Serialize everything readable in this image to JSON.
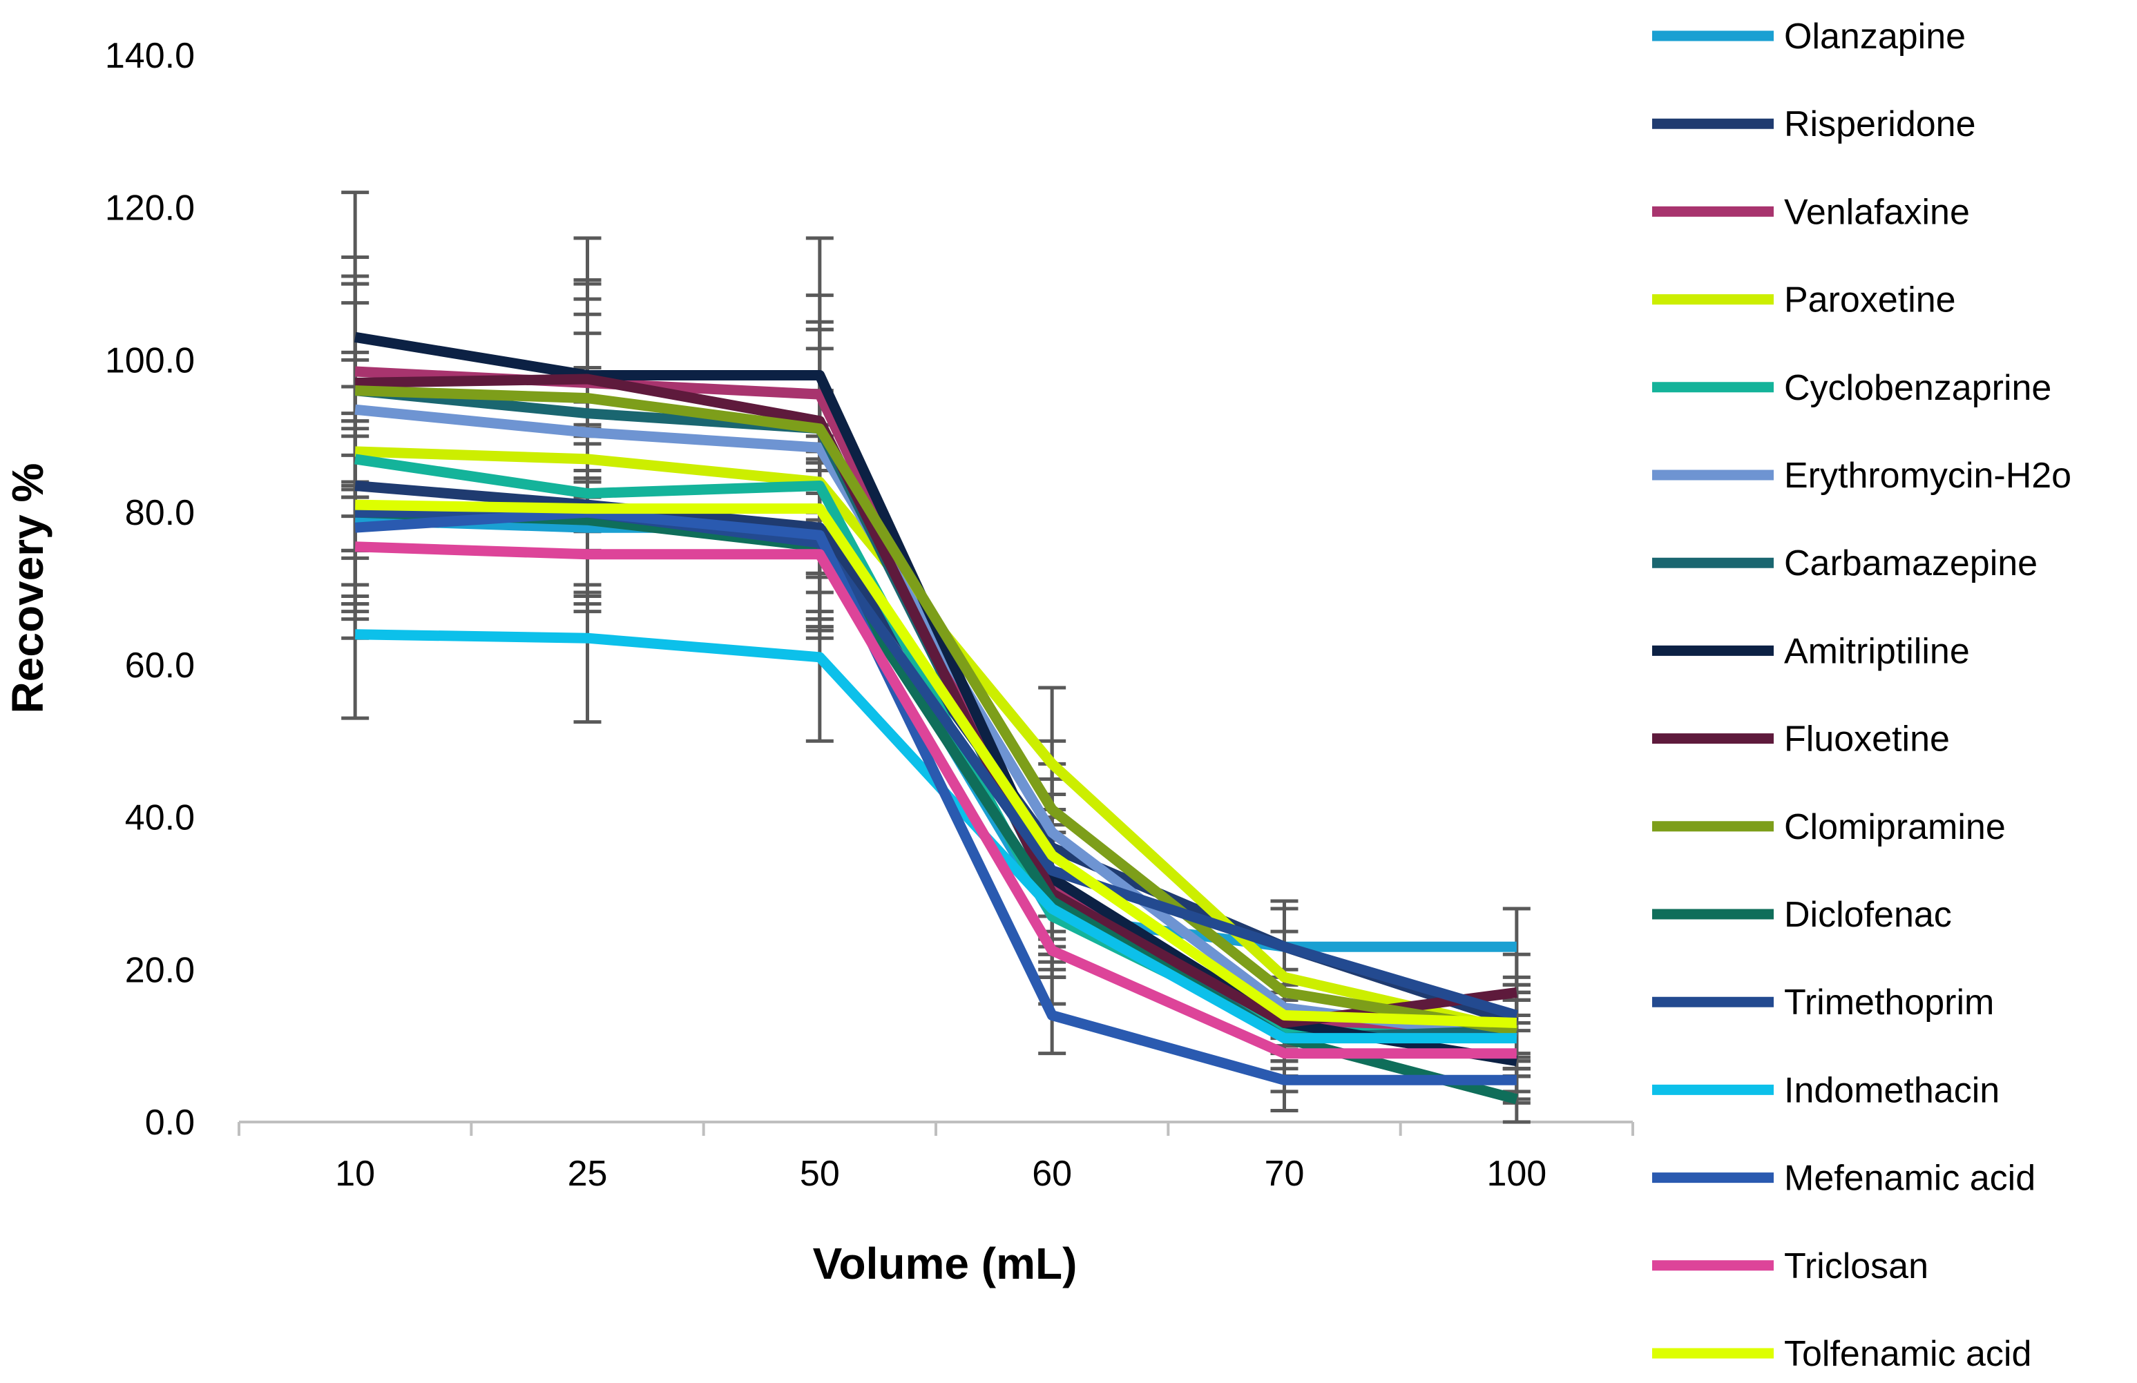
{
  "chart_data": {
    "type": "line",
    "title": "",
    "xlabel": "Volume (mL)",
    "ylabel": "Recovery %",
    "categories": [
      "10",
      "25",
      "50",
      "60",
      "70",
      "100"
    ],
    "ylim": [
      0,
      140
    ],
    "yticks": [
      0,
      20,
      40,
      60,
      80,
      100,
      120,
      140
    ],
    "ytick_labels": [
      "0.0",
      "20.0",
      "40.0",
      "60.0",
      "80.0",
      "100.0",
      "120.0",
      "140.0"
    ],
    "grid": false,
    "error_bar_color": "#595959",
    "legend_position": "right",
    "series": [
      {
        "name": "Olanzapine",
        "color": "#1aa0d2",
        "values": [
          79,
          78,
          78,
          27,
          23,
          23
        ],
        "error": [
          12,
          11,
          11,
          8,
          5,
          5
        ]
      },
      {
        "name": "Risperidone",
        "color": "#1f3b70",
        "values": [
          83.5,
          81,
          78,
          36,
          23,
          13
        ],
        "error": [
          13,
          12,
          12,
          9,
          6,
          5
        ]
      },
      {
        "name": "Venlafaxine",
        "color": "#a8346e",
        "values": [
          98.5,
          97,
          95.5,
          31,
          13,
          12
        ],
        "error": [
          15,
          13,
          13,
          8,
          5,
          5
        ]
      },
      {
        "name": "Paroxetine",
        "color": "#ccee00",
        "values": [
          88,
          87,
          84,
          47,
          19,
          12
        ],
        "error": [
          13,
          12,
          12,
          10,
          6,
          5
        ]
      },
      {
        "name": "Cyclobenzaprine",
        "color": "#14b39a",
        "values": [
          87,
          82.5,
          83.5,
          27,
          12,
          11
        ],
        "error": [
          13,
          12,
          12,
          8,
          5,
          5
        ]
      },
      {
        "name": "Erythromycin-H2o",
        "color": "#6e94d2",
        "values": [
          93.5,
          90.5,
          88.5,
          38,
          15,
          11
        ],
        "error": [
          14,
          13,
          13,
          9,
          5,
          5
        ]
      },
      {
        "name": "Carbamazepine",
        "color": "#1a6670",
        "values": [
          96,
          93,
          91,
          30,
          11,
          12
        ],
        "error": [
          14,
          13,
          13,
          8,
          5,
          5
        ]
      },
      {
        "name": "Amitriptiline",
        "color": "#0c2144",
        "values": [
          103,
          98,
          98,
          32,
          13,
          8
        ],
        "error": [
          19,
          18,
          18,
          8,
          5,
          5
        ]
      },
      {
        "name": "Fluoxetine",
        "color": "#5e1a3c",
        "values": [
          97,
          97.5,
          92,
          30,
          13,
          17
        ],
        "error": [
          14,
          13,
          13,
          8,
          5,
          5
        ]
      },
      {
        "name": "Clomipramine",
        "color": "#7d9e1a",
        "values": [
          96,
          95,
          91,
          41,
          17,
          12
        ],
        "error": [
          14,
          13,
          13,
          9,
          6,
          5
        ]
      },
      {
        "name": "Diclofenac",
        "color": "#0f6e5a",
        "values": [
          80,
          79,
          75.5,
          29,
          11,
          3
        ],
        "error": [
          12,
          11,
          11,
          8,
          5,
          3
        ]
      },
      {
        "name": "Trimethoprim",
        "color": "#234a90",
        "values": [
          80,
          80,
          76,
          33,
          23,
          14
        ],
        "error": [
          12,
          11,
          11,
          8,
          6,
          5
        ]
      },
      {
        "name": "Indomethacin",
        "color": "#0cc0ea",
        "values": [
          64,
          63.5,
          61,
          28,
          11,
          11
        ],
        "error": [
          11,
          11,
          11,
          8,
          5,
          5
        ]
      },
      {
        "name": "Mefenamic acid",
        "color": "#2a5ab0",
        "values": [
          78,
          80,
          77,
          14,
          5.5,
          5.5
        ],
        "error": [
          12,
          11,
          11,
          5,
          4,
          3
        ]
      },
      {
        "name": "Triclosan",
        "color": "#dd4499",
        "values": [
          75.5,
          74.5,
          74.5,
          22.5,
          9,
          9
        ],
        "error": [
          12,
          11,
          11,
          7,
          5,
          5
        ]
      },
      {
        "name": "Tolfenamic acid",
        "color": "#ddff00",
        "values": [
          81,
          80.5,
          80.5,
          35,
          14,
          13
        ],
        "error": [
          12,
          11,
          11,
          8,
          5,
          5
        ]
      }
    ]
  }
}
